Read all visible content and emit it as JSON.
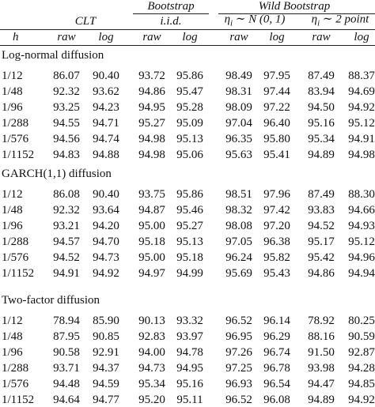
{
  "header": {
    "groups": [
      "Bootstrap",
      "Wild Bootstrap"
    ],
    "methods": [
      "CLT",
      "i.i.d.",
      {
        "symbol": "η",
        "subscript": "i",
        "rest": "∼ N (0, 1)"
      },
      {
        "symbol": "η",
        "subscript": "i",
        "rest": "∼ 2 point"
      }
    ],
    "columns": [
      "h",
      "raw",
      "log",
      "raw",
      "log",
      "raw",
      "log",
      "raw",
      "log"
    ]
  },
  "sections": [
    {
      "title": "Log-normal diffusion",
      "rows": [
        [
          "1/12",
          "86.07",
          "90.40",
          "93.72",
          "95.86",
          "98.49",
          "97.95",
          "87.49",
          "88.37"
        ],
        [
          "1/48",
          "92.32",
          "93.62",
          "94.86",
          "95.47",
          "98.31",
          "97.44",
          "83.94",
          "94.69"
        ],
        [
          "1/96",
          "93.25",
          "94.23",
          "94.95",
          "95.28",
          "98.09",
          "97.22",
          "94.50",
          "94.92"
        ],
        [
          "1/288",
          "94.55",
          "94.71",
          "95.27",
          "95.09",
          "97.04",
          "96.40",
          "95.16",
          "95.12"
        ],
        [
          "1/576",
          "94.56",
          "94.74",
          "94.98",
          "95.13",
          "96.35",
          "95.80",
          "95.34",
          "94.91"
        ],
        [
          "1/1152",
          "94.83",
          "94.88",
          "94.98",
          "95.06",
          "95.63",
          "95.41",
          "94.89",
          "94.98"
        ]
      ]
    },
    {
      "title": "GARCH(1,1) diffusion",
      "rows": [
        [
          "1/12",
          "86.08",
          "90.40",
          "93.75",
          "95.86",
          "98.51",
          "97.96",
          "87.49",
          "88.30"
        ],
        [
          "1/48",
          "92.32",
          "93.64",
          "94.87",
          "95.46",
          "98.32",
          "97.42",
          "93.83",
          "94.66"
        ],
        [
          "1/96",
          "93.21",
          "94.20",
          "95.00",
          "95.27",
          "98.08",
          "97.20",
          "94.52",
          "94.93"
        ],
        [
          "1/288",
          "94.57",
          "94.70",
          "95.18",
          "95.13",
          "97.05",
          "96.38",
          "95.17",
          "95.12"
        ],
        [
          "1/576",
          "94.52",
          "94.73",
          "95.00",
          "95.18",
          "96.24",
          "95.82",
          "95.42",
          "94.96"
        ],
        [
          "1/1152",
          "94.91",
          "94.92",
          "94.97",
          "94.99",
          "95.69",
          "95.43",
          "94.86",
          "94.94"
        ]
      ]
    },
    {
      "title": "Two-factor diffusion",
      "rows": [
        [
          "1/12",
          "78.94",
          "85.90",
          "90.13",
          "93.32",
          "96.52",
          "96.14",
          "78.92",
          "80.25"
        ],
        [
          "1/48",
          "87.95",
          "90.85",
          "92.83",
          "93.97",
          "96.95",
          "96.29",
          "88.16",
          "90.59"
        ],
        [
          "1/96",
          "90.58",
          "92.91",
          "94.00",
          "94.78",
          "97.26",
          "96.74",
          "91.50",
          "92.87"
        ],
        [
          "1/288",
          "93.71",
          "94.37",
          "94.73",
          "94.95",
          "97.25",
          "96.78",
          "93.98",
          "94.28"
        ],
        [
          "1/576",
          "94.48",
          "94.59",
          "95.34",
          "95.16",
          "96.93",
          "96.54",
          "94.47",
          "94.85"
        ],
        [
          "1/1152",
          "94.64",
          "94.77",
          "95.20",
          "95.11",
          "96.52",
          "96.08",
          "94.89",
          "94.92"
        ]
      ]
    }
  ]
}
